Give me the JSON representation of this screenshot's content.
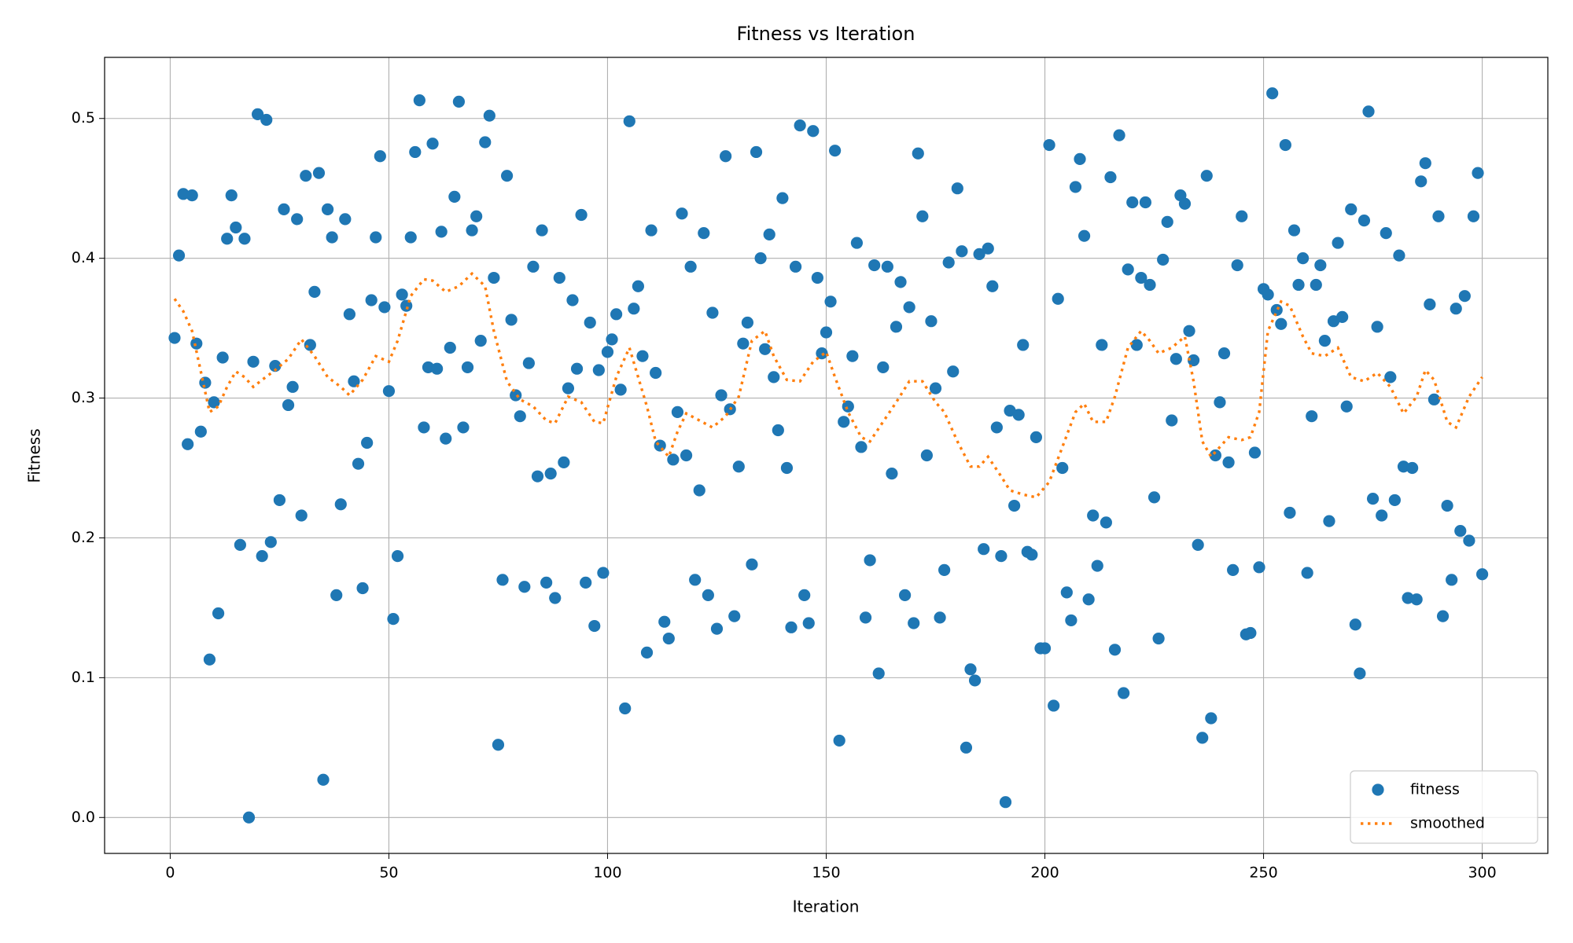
{
  "chart_data": {
    "type": "scatter",
    "title": "Fitness vs Iteration",
    "x_label": "Iteration",
    "y_label": "Fitness",
    "xlim": [
      -15,
      315
    ],
    "ylim": [
      -0.0257,
      0.5437
    ],
    "xticks": [
      0,
      50,
      100,
      150,
      200,
      250,
      300
    ],
    "yticks": [
      {
        "value": 0,
        "label": "0.0"
      },
      0.1,
      0.2,
      0.3,
      0.4,
      0.5
    ],
    "grid": true,
    "legend": "lower right",
    "x": [
      1,
      2,
      3,
      4,
      5,
      6,
      7,
      8,
      9,
      10,
      11,
      12,
      13,
      14,
      15,
      16,
      17,
      18,
      19,
      20,
      21,
      22,
      23,
      24,
      25,
      26,
      27,
      28,
      29,
      30,
      31,
      32,
      33,
      34,
      35,
      36,
      37,
      38,
      39,
      40,
      41,
      42,
      43,
      44,
      45,
      46,
      47,
      48,
      49,
      50,
      51,
      52,
      53,
      54,
      55,
      56,
      57,
      58,
      59,
      60,
      61,
      62,
      63,
      64,
      65,
      66,
      67,
      68,
      69,
      70,
      71,
      72,
      73,
      74,
      75,
      76,
      77,
      78,
      79,
      80,
      81,
      82,
      83,
      84,
      85,
      86,
      87,
      88,
      89,
      90,
      91,
      92,
      93,
      94,
      95,
      96,
      97,
      98,
      99,
      100,
      101,
      102,
      103,
      104,
      105,
      106,
      107,
      108,
      109,
      110,
      111,
      112,
      113,
      114,
      115,
      116,
      117,
      118,
      119,
      120,
      121,
      122,
      123,
      124,
      125,
      126,
      127,
      128,
      129,
      130,
      131,
      132,
      133,
      134,
      135,
      136,
      137,
      138,
      139,
      140,
      141,
      142,
      143,
      144,
      145,
      146,
      147,
      148,
      149,
      150,
      151,
      152,
      153,
      154,
      155,
      156,
      157,
      158,
      159,
      160,
      161,
      162,
      163,
      164,
      165,
      166,
      167,
      168,
      169,
      170,
      171,
      172,
      173,
      174,
      175,
      176,
      177,
      178,
      179,
      180,
      181,
      182,
      183,
      184,
      185,
      186,
      187,
      188,
      189,
      190,
      191,
      192,
      193,
      194,
      195,
      196,
      197,
      198,
      199,
      200,
      201,
      202,
      203,
      204,
      205,
      206,
      207,
      208,
      209,
      210,
      211,
      212,
      213,
      214,
      215,
      216,
      217,
      218,
      219,
      220,
      221,
      222,
      223,
      224,
      225,
      226,
      227,
      228,
      229,
      230,
      231,
      232,
      233,
      234,
      235,
      236,
      237,
      238,
      239,
      240,
      241,
      242,
      243,
      244,
      245,
      246,
      247,
      248,
      249,
      250,
      251,
      252,
      253,
      254,
      255,
      256,
      257,
      258,
      259,
      260,
      261,
      262,
      263,
      264,
      265,
      266,
      267,
      268,
      269,
      270,
      271,
      272,
      273,
      274,
      275,
      276,
      277,
      278,
      279,
      280,
      281,
      282,
      283,
      284,
      285,
      286,
      287,
      288,
      289,
      290,
      291,
      292,
      293,
      294,
      295,
      296,
      297,
      298,
      299,
      300
    ],
    "series": [
      {
        "name": "fitness",
        "type": "scatter",
        "color": "#1f77b4",
        "values": [
          0.343,
          0.402,
          0.446,
          0.267,
          0.445,
          0.339,
          0.276,
          0.311,
          0.113,
          0.297,
          0.146,
          0.329,
          0.414,
          0.445,
          0.422,
          0.195,
          0.414,
          0.0,
          0.326,
          0.503,
          0.187,
          0.499,
          0.197,
          0.323,
          0.227,
          0.435,
          0.295,
          0.308,
          0.428,
          0.216,
          0.459,
          0.338,
          0.376,
          0.461,
          0.027,
          0.435,
          0.415,
          0.159,
          0.224,
          0.428,
          0.36,
          0.312,
          0.253,
          0.164,
          0.268,
          0.37,
          0.415,
          0.473,
          0.365,
          0.305,
          0.142,
          0.187,
          0.374,
          0.366,
          0.415,
          0.476,
          0.513,
          0.279,
          0.322,
          0.482,
          0.321,
          0.419,
          0.271,
          0.336,
          0.444,
          0.512,
          0.279,
          0.322,
          0.42,
          0.43,
          0.341,
          0.483,
          0.502,
          0.386,
          0.052,
          0.17,
          0.459,
          0.356,
          0.302,
          0.287,
          0.165,
          0.325,
          0.394,
          0.244,
          0.42,
          0.168,
          0.246,
          0.157,
          0.386,
          0.254,
          0.307,
          0.37,
          0.321,
          0.431,
          0.168,
          0.354,
          0.137,
          0.32,
          0.175,
          0.333,
          0.342,
          0.36,
          0.306,
          0.078,
          0.498,
          0.364,
          0.38,
          0.33,
          0.118,
          0.42,
          0.318,
          0.266,
          0.14,
          0.128,
          0.256,
          0.29,
          0.432,
          0.259,
          0.394,
          0.17,
          0.234,
          0.418,
          0.159,
          0.361,
          0.135,
          0.302,
          0.473,
          0.292,
          0.144,
          0.251,
          0.339,
          0.354,
          0.181,
          0.476,
          0.4,
          0.335,
          0.417,
          0.315,
          0.277,
          0.443,
          0.25,
          0.136,
          0.394,
          0.495,
          0.159,
          0.139,
          0.491,
          0.386,
          0.332,
          0.347,
          0.369,
          0.477,
          0.055,
          0.283,
          0.294,
          0.33,
          0.411,
          0.265,
          0.143,
          0.184,
          0.395,
          0.103,
          0.322,
          0.394,
          0.246,
          0.351,
          0.383,
          0.159,
          0.365,
          0.139,
          0.475,
          0.43,
          0.259,
          0.355,
          0.307,
          0.143,
          0.177,
          0.397,
          0.319,
          0.45,
          0.405,
          0.05,
          0.106,
          0.098,
          0.403,
          0.192,
          0.407,
          0.38,
          0.279,
          0.187,
          0.011,
          0.291,
          0.223,
          0.288,
          0.338,
          0.19,
          0.188,
          0.272,
          0.121,
          0.121,
          0.481,
          0.08,
          0.371,
          0.25,
          0.161,
          0.141,
          0.451,
          0.471,
          0.416,
          0.156,
          0.216,
          0.18,
          0.338,
          0.211,
          0.458,
          0.12,
          0.488,
          0.089,
          0.392,
          0.44,
          0.338,
          0.386,
          0.44,
          0.381,
          0.229,
          0.128,
          0.399,
          0.426,
          0.284,
          0.328,
          0.445,
          0.439,
          0.348,
          0.327,
          0.195,
          0.057,
          0.459,
          0.071,
          0.259,
          0.297,
          0.332,
          0.254,
          0.177,
          0.395,
          0.43,
          0.131,
          0.132,
          0.261,
          0.179,
          0.378,
          0.374,
          0.518,
          0.363,
          0.353,
          0.481,
          0.218,
          0.42,
          0.381,
          0.4,
          0.175,
          0.287,
          0.381,
          0.395,
          0.341,
          0.212,
          0.355,
          0.411,
          0.358,
          0.294,
          0.435,
          0.138,
          0.103,
          0.427,
          0.505,
          0.228,
          0.351,
          0.216,
          0.418,
          0.315,
          0.227,
          0.402,
          0.251,
          0.157,
          0.25,
          0.156,
          0.455,
          0.468,
          0.367,
          0.299,
          0.43,
          0.144,
          0.223,
          0.17,
          0.364,
          0.205,
          0.373,
          0.198,
          0.43,
          0.461,
          0.174
        ]
      },
      {
        "name": "smoothed",
        "type": "line",
        "color": "#ff7f0e",
        "dash": "dotted",
        "x": [
          1,
          3,
          5,
          7,
          9,
          11,
          13,
          15,
          17,
          19,
          21,
          24,
          27,
          30,
          33,
          36,
          39,
          41,
          44,
          47,
          50,
          52,
          55,
          58,
          60,
          63,
          66,
          69,
          72,
          74,
          77,
          80,
          83,
          86,
          88,
          91,
          94,
          97,
          99,
          102,
          105,
          107,
          109,
          111,
          114,
          116,
          118,
          121,
          124,
          127,
          130,
          133,
          136,
          138,
          141,
          144,
          147,
          150,
          152,
          155,
          158,
          160,
          163,
          166,
          169,
          172,
          175,
          177,
          180,
          183,
          185,
          187,
          190,
          192,
          195,
          198,
          201,
          204,
          207,
          209,
          211,
          214,
          216,
          219,
          222,
          224,
          226,
          229,
          232,
          234,
          236,
          238,
          240,
          242,
          245,
          247,
          249,
          251,
          254,
          256,
          259,
          261,
          264,
          267,
          270,
          273,
          276,
          279,
          282,
          285,
          287,
          289,
          292,
          294,
          297,
          300
        ],
        "values": [
          0.371,
          0.362,
          0.348,
          0.319,
          0.29,
          0.294,
          0.308,
          0.319,
          0.315,
          0.308,
          0.313,
          0.32,
          0.328,
          0.342,
          0.33,
          0.315,
          0.308,
          0.302,
          0.313,
          0.33,
          0.326,
          0.341,
          0.373,
          0.385,
          0.384,
          0.376,
          0.38,
          0.389,
          0.38,
          0.348,
          0.312,
          0.299,
          0.294,
          0.284,
          0.282,
          0.301,
          0.297,
          0.283,
          0.282,
          0.315,
          0.336,
          0.315,
          0.294,
          0.269,
          0.258,
          0.276,
          0.289,
          0.284,
          0.279,
          0.287,
          0.301,
          0.341,
          0.348,
          0.33,
          0.313,
          0.312,
          0.326,
          0.333,
          0.315,
          0.29,
          0.272,
          0.269,
          0.283,
          0.297,
          0.312,
          0.312,
          0.297,
          0.29,
          0.269,
          0.251,
          0.251,
          0.258,
          0.244,
          0.234,
          0.231,
          0.229,
          0.24,
          0.265,
          0.29,
          0.296,
          0.283,
          0.283,
          0.301,
          0.336,
          0.348,
          0.341,
          0.332,
          0.336,
          0.344,
          0.312,
          0.269,
          0.258,
          0.265,
          0.272,
          0.27,
          0.272,
          0.29,
          0.348,
          0.369,
          0.366,
          0.344,
          0.332,
          0.33,
          0.336,
          0.315,
          0.312,
          0.318,
          0.308,
          0.289,
          0.301,
          0.32,
          0.313,
          0.283,
          0.279,
          0.301,
          0.315
        ]
      }
    ]
  }
}
